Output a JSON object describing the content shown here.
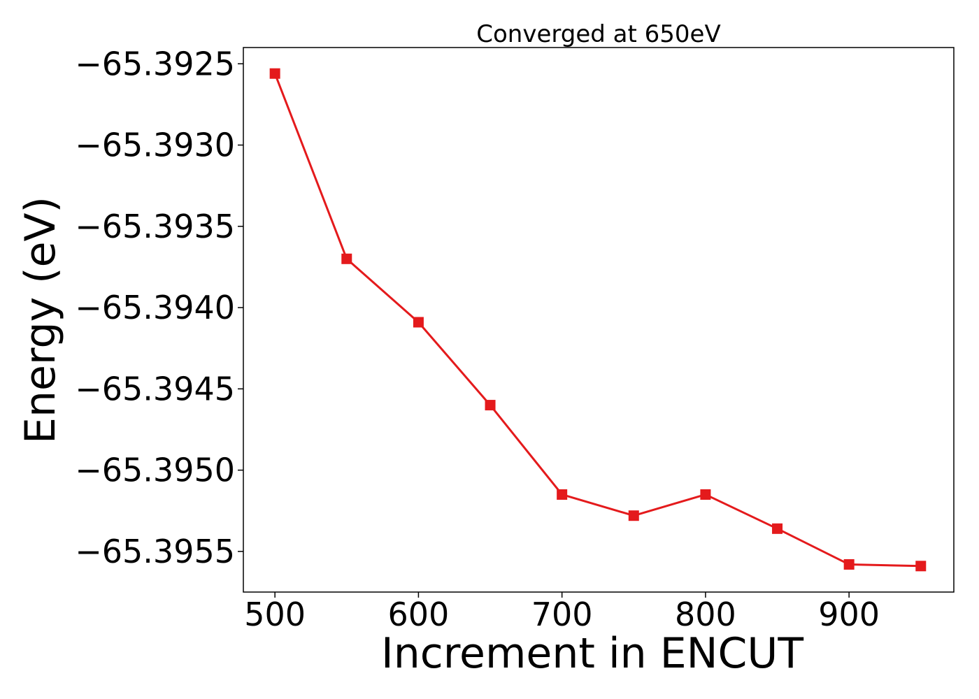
{
  "chart_data": {
    "type": "line",
    "title": "Converged at 650eV",
    "xlabel": "Increment in ENCUT",
    "ylabel": "Energy (eV)",
    "x": [
      500,
      550,
      600,
      650,
      700,
      750,
      800,
      850,
      900,
      950
    ],
    "series": [
      {
        "values": [
          -65.39256,
          -65.3937,
          -65.39409,
          -65.3946,
          -65.39515,
          -65.39528,
          -65.39515,
          -65.39536,
          -65.39558,
          -65.39559
        ],
        "color": "#e41a1c",
        "marker": "square"
      }
    ],
    "xlim": [
      478,
      973
    ],
    "ylim": [
      -65.39575,
      -65.3924
    ],
    "xticks": [
      500,
      600,
      700,
      800,
      900
    ],
    "xtick_labels": [
      "500",
      "600",
      "700",
      "800",
      "900"
    ],
    "yticks": [
      -65.3925,
      -65.393,
      -65.3935,
      -65.394,
      -65.3945,
      -65.395,
      -65.3955
    ],
    "ytick_labels": [
      "−65.3925",
      "−65.3930",
      "−65.3935",
      "−65.3940",
      "−65.3945",
      "−65.3950",
      "−65.3955"
    ],
    "grid": false,
    "legend": false
  }
}
